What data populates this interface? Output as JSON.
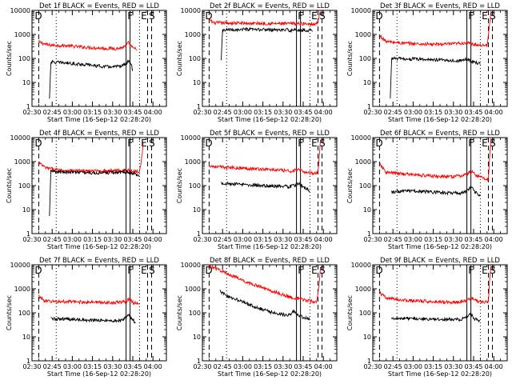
{
  "figure": {
    "x_tick_labels": [
      "02:30",
      "02:45",
      "03:00",
      "03:15",
      "03:30",
      "03:45",
      "04:00"
    ],
    "y_tick_labels": [
      "1",
      "10",
      "100",
      "1000",
      "10000"
    ],
    "ylabel": "Counts/sec",
    "xlabel": "Start Time (16-Sep-12 02:28:20)",
    "marker_labels": [
      "D",
      "F",
      "E",
      "S"
    ],
    "colors": {
      "events": "#000000",
      "lld": "#ff0000",
      "axis": "#000000"
    }
  },
  "chart_data": [
    {
      "type": "line",
      "title": "Det 1f BLACK = Events, RED = LLD",
      "xlabel": "Start Time (16-Sep-12 02:28:20)",
      "ylabel": "Counts/sec",
      "yscale": "log",
      "ylim": [
        1,
        10000
      ],
      "xlim_minutes": [
        0,
        100
      ],
      "series": [
        {
          "color": "red",
          "start_min": 5,
          "end_min": 78,
          "points": [
            [
              5,
              480
            ],
            [
              12,
              360
            ],
            [
              25,
              340
            ],
            [
              40,
              290
            ],
            [
              55,
              260
            ],
            [
              65,
              260
            ],
            [
              70,
              320
            ],
            [
              72,
              470
            ],
            [
              75,
              260
            ],
            [
              78,
              250
            ]
          ]
        },
        {
          "color": "black",
          "start_min": 13,
          "end_min": 75,
          "points": [
            [
              13,
              2
            ],
            [
              14,
              70
            ],
            [
              25,
              65
            ],
            [
              40,
              55
            ],
            [
              55,
              45
            ],
            [
              65,
              45
            ],
            [
              70,
              60
            ],
            [
              72,
              85
            ],
            [
              74,
              50
            ],
            [
              75,
              30
            ]
          ]
        }
      ]
    },
    {
      "type": "line",
      "title": "Det 2f BLACK = Events, RED = LLD",
      "xlabel": "Start Time (16-Sep-12 02:28:20)",
      "ylabel": "Counts/sec",
      "yscale": "log",
      "ylim": [
        1,
        10000
      ],
      "xlim_minutes": [
        0,
        100
      ],
      "series": [
        {
          "color": "red",
          "start_min": 5,
          "end_min": 88,
          "points": [
            [
              5,
              4500
            ],
            [
              8,
              3000
            ],
            [
              15,
              3000
            ],
            [
              35,
              2900
            ],
            [
              60,
              2800
            ],
            [
              80,
              2800
            ],
            [
              85,
              2700
            ],
            [
              87,
              6000
            ],
            [
              88,
              9000
            ]
          ]
        },
        {
          "color": "black",
          "start_min": 14,
          "end_min": 82,
          "points": [
            [
              14,
              80
            ],
            [
              15,
              1500
            ],
            [
              30,
              1600
            ],
            [
              50,
              1550
            ],
            [
              70,
              1500
            ],
            [
              82,
              1500
            ]
          ]
        }
      ]
    },
    {
      "type": "line",
      "title": "Det 3f BLACK = Events, RED = LLD",
      "xlabel": "Start Time (16-Sep-12 02:28:20)",
      "ylabel": "Counts/sec",
      "yscale": "log",
      "ylim": [
        1,
        10000
      ],
      "xlim_minutes": [
        0,
        100
      ],
      "series": [
        {
          "color": "red",
          "start_min": 5,
          "end_min": 88,
          "points": [
            [
              5,
              900
            ],
            [
              10,
              500
            ],
            [
              25,
              420
            ],
            [
              45,
              380
            ],
            [
              60,
              400
            ],
            [
              70,
              450
            ],
            [
              75,
              380
            ],
            [
              85,
              350
            ],
            [
              87,
              3000
            ],
            [
              88,
              9000
            ]
          ]
        },
        {
          "color": "black",
          "start_min": 13,
          "end_min": 80,
          "points": [
            [
              13,
              2
            ],
            [
              14,
              100
            ],
            [
              25,
              95
            ],
            [
              40,
              90
            ],
            [
              55,
              85
            ],
            [
              65,
              80
            ],
            [
              70,
              95
            ],
            [
              73,
              75
            ],
            [
              80,
              60
            ]
          ]
        }
      ]
    },
    {
      "type": "line",
      "title": "Det 4f BLACK = Events, RED = LLD",
      "xlabel": "Start Time (16-Sep-12 02:28:20)",
      "ylabel": "Counts/sec",
      "yscale": "log",
      "ylim": [
        1,
        10000
      ],
      "xlim_minutes": [
        0,
        100
      ],
      "series": [
        {
          "color": "red",
          "start_min": 5,
          "end_min": 83,
          "points": [
            [
              5,
              900
            ],
            [
              10,
              550
            ],
            [
              20,
              440
            ],
            [
              30,
              420
            ],
            [
              45,
              400
            ],
            [
              60,
              420
            ],
            [
              70,
              440
            ],
            [
              75,
              400
            ],
            [
              80,
              400
            ],
            [
              82,
              2000
            ],
            [
              83,
              9000
            ]
          ]
        },
        {
          "color": "black",
          "start_min": 13,
          "end_min": 80,
          "points": [
            [
              13,
              5
            ],
            [
              14,
              400
            ],
            [
              20,
              380
            ],
            [
              30,
              360
            ],
            [
              45,
              340
            ],
            [
              60,
              350
            ],
            [
              70,
              370
            ],
            [
              75,
              320
            ],
            [
              80,
              250
            ]
          ]
        }
      ]
    },
    {
      "type": "line",
      "title": "Det 5f BLACK = Events, RED = LLD",
      "xlabel": "Start Time (16-Sep-12 02:28:20)",
      "ylabel": "Counts/sec",
      "yscale": "log",
      "ylim": [
        1,
        10000
      ],
      "xlim_minutes": [
        0,
        100
      ],
      "series": [
        {
          "color": "red",
          "start_min": 5,
          "end_min": 88,
          "points": [
            [
              5,
              700
            ],
            [
              10,
              600
            ],
            [
              25,
              550
            ],
            [
              40,
              500
            ],
            [
              55,
              450
            ],
            [
              65,
              400
            ],
            [
              72,
              450
            ],
            [
              75,
              380
            ],
            [
              82,
              330
            ],
            [
              86,
              350
            ],
            [
              87,
              2000
            ],
            [
              88,
              9000
            ]
          ]
        },
        {
          "color": "black",
          "start_min": 14,
          "end_min": 80,
          "points": [
            [
              14,
              130
            ],
            [
              20,
              120
            ],
            [
              30,
              110
            ],
            [
              45,
              100
            ],
            [
              55,
              95
            ],
            [
              65,
              90
            ],
            [
              72,
              120
            ],
            [
              75,
              90
            ],
            [
              80,
              60
            ]
          ]
        }
      ]
    },
    {
      "type": "line",
      "title": "Det 6f BLACK = Events, RED = LLD",
      "xlabel": "Start Time (16-Sep-12 02:28:20)",
      "ylabel": "Counts/sec",
      "yscale": "log",
      "ylim": [
        1,
        10000
      ],
      "xlim_minutes": [
        0,
        100
      ],
      "series": [
        {
          "color": "red",
          "start_min": 5,
          "end_min": 88,
          "points": [
            [
              5,
              800
            ],
            [
              10,
              350
            ],
            [
              25,
              300
            ],
            [
              40,
              260
            ],
            [
              55,
              230
            ],
            [
              65,
              250
            ],
            [
              70,
              300
            ],
            [
              73,
              400
            ],
            [
              78,
              250
            ],
            [
              86,
              180
            ],
            [
              87,
              2000
            ],
            [
              88,
              9000
            ]
          ]
        },
        {
          "color": "black",
          "start_min": 14,
          "end_min": 80,
          "points": [
            [
              14,
              55
            ],
            [
              25,
              60
            ],
            [
              40,
              55
            ],
            [
              55,
              50
            ],
            [
              65,
              50
            ],
            [
              70,
              60
            ],
            [
              73,
              85
            ],
            [
              76,
              55
            ],
            [
              80,
              40
            ]
          ]
        }
      ]
    },
    {
      "type": "line",
      "title": "Det 7f BLACK = Events, RED = LLD",
      "xlabel": "Start Time (16-Sep-12 02:28:20)",
      "ylabel": "Counts/sec",
      "yscale": "log",
      "ylim": [
        1,
        10000
      ],
      "xlim_minutes": [
        0,
        100
      ],
      "series": [
        {
          "color": "red",
          "start_min": 5,
          "end_min": 80,
          "points": [
            [
              5,
              500
            ],
            [
              10,
              300
            ],
            [
              25,
              290
            ],
            [
              40,
              280
            ],
            [
              55,
              270
            ],
            [
              65,
              270
            ],
            [
              70,
              300
            ],
            [
              72,
              380
            ],
            [
              75,
              270
            ],
            [
              80,
              250
            ]
          ]
        },
        {
          "color": "black",
          "start_min": 14,
          "end_min": 77,
          "points": [
            [
              14,
              55
            ],
            [
              25,
              55
            ],
            [
              40,
              50
            ],
            [
              55,
              48
            ],
            [
              65,
              48
            ],
            [
              70,
              60
            ],
            [
              72,
              80
            ],
            [
              74,
              55
            ],
            [
              77,
              40
            ]
          ]
        }
      ]
    },
    {
      "type": "line",
      "title": "Det 8f BLACK = Events, RED = LLD",
      "xlabel": "Start Time (16-Sep-12 02:28:20)",
      "ylabel": "Counts/sec",
      "yscale": "log",
      "ylim": [
        1,
        10000
      ],
      "xlim_minutes": [
        0,
        100
      ],
      "series": [
        {
          "color": "red",
          "start_min": 5,
          "end_min": 88,
          "points": [
            [
              5,
              9000
            ],
            [
              10,
              7000
            ],
            [
              20,
              4000
            ],
            [
              30,
              2200
            ],
            [
              45,
              1100
            ],
            [
              55,
              700
            ],
            [
              65,
              450
            ],
            [
              75,
              350
            ],
            [
              85,
              280
            ],
            [
              87,
              2000
            ],
            [
              88,
              9000
            ]
          ]
        },
        {
          "color": "black",
          "start_min": 13,
          "end_min": 80,
          "points": [
            [
              13,
              800
            ],
            [
              20,
              450
            ],
            [
              30,
              280
            ],
            [
              40,
              170
            ],
            [
              50,
              110
            ],
            [
              60,
              85
            ],
            [
              65,
              80
            ],
            [
              68,
              120
            ],
            [
              70,
              85
            ],
            [
              75,
              65
            ],
            [
              80,
              55
            ]
          ]
        }
      ]
    },
    {
      "type": "line",
      "title": "Det 9f BLACK = Events, RED = LLD",
      "xlabel": "Start Time (16-Sep-12 02:28:20)",
      "ylabel": "Counts/sec",
      "yscale": "log",
      "ylim": [
        1,
        10000
      ],
      "xlim_minutes": [
        0,
        100
      ],
      "series": [
        {
          "color": "red",
          "start_min": 5,
          "end_min": 88,
          "points": [
            [
              5,
              700
            ],
            [
              10,
              400
            ],
            [
              25,
              330
            ],
            [
              40,
              300
            ],
            [
              55,
              280
            ],
            [
              65,
              280
            ],
            [
              70,
              320
            ],
            [
              73,
              420
            ],
            [
              78,
              300
            ],
            [
              86,
              280
            ],
            [
              87,
              3000
            ],
            [
              88,
              9000
            ]
          ]
        },
        {
          "color": "black",
          "start_min": 14,
          "end_min": 80,
          "points": [
            [
              14,
              55
            ],
            [
              25,
              60
            ],
            [
              40,
              55
            ],
            [
              55,
              52
            ],
            [
              65,
              52
            ],
            [
              70,
              65
            ],
            [
              73,
              90
            ],
            [
              76,
              55
            ],
            [
              80,
              40
            ]
          ]
        }
      ]
    }
  ]
}
